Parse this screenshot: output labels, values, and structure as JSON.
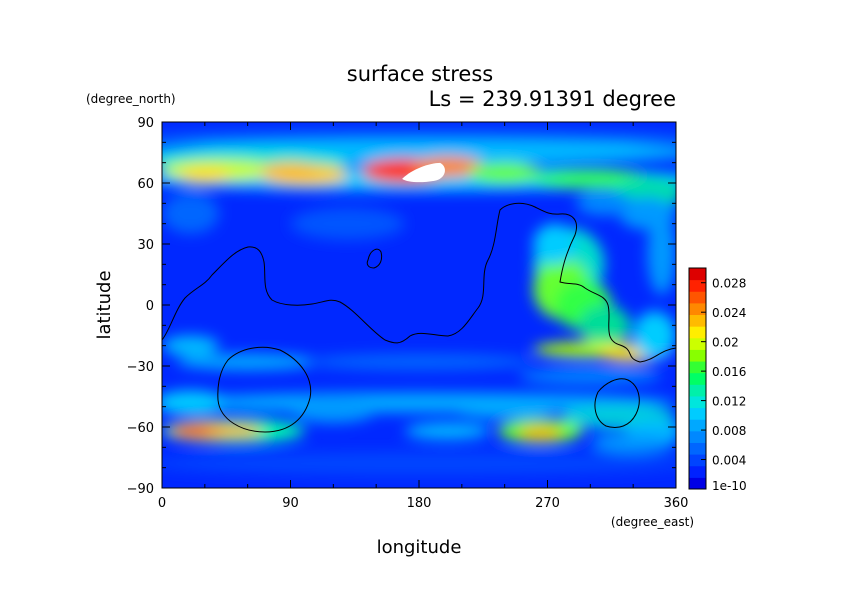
{
  "chart_data": {
    "type": "heatmap",
    "title": "surface stress",
    "subtitle": "Ls = 239.91391 degree",
    "xlabel": "longitude",
    "ylabel": "latitude",
    "x_unit": "(degree_east)",
    "y_unit": "(degree_north)",
    "xlim": [
      0,
      360
    ],
    "ylim": [
      -90,
      90
    ],
    "x_ticks": [
      "0",
      "90",
      "180",
      "270",
      "360"
    ],
    "y_ticks": [
      "90",
      "60",
      "30",
      "0",
      "−30",
      "−60",
      "−90"
    ],
    "colorbar": {
      "tick_labels": [
        "1e-10",
        "0.004",
        "0.008",
        "0.012",
        "0.016",
        "0.02",
        "0.024",
        "0.028"
      ],
      "levels": [
        0,
        0.004,
        0.008,
        0.012,
        0.016,
        0.02,
        0.024,
        0.028
      ],
      "colors": [
        "#0000e6",
        "#0022ff",
        "#0044ff",
        "#0066ff",
        "#0088ff",
        "#00a8ff",
        "#00ccff",
        "#00e6dd",
        "#00f0aa",
        "#00ff66",
        "#33ff33",
        "#88ff00",
        "#ccff00",
        "#ffee00",
        "#ffbb00",
        "#ff8800",
        "#ff5500",
        "#ff2200",
        "#dd0000"
      ],
      "max_shown": 0.03
    },
    "features": [
      {
        "lon": 185,
        "lat": 65,
        "value": 0.032,
        "note": "white (above max)"
      },
      {
        "lon": 160,
        "lat": 65,
        "value": 0.026
      },
      {
        "lon": 100,
        "lat": 64,
        "value": 0.02
      },
      {
        "lon": 40,
        "lat": 65,
        "value": 0.018
      },
      {
        "lon": 30,
        "lat": -62,
        "value": 0.026
      },
      {
        "lon": 265,
        "lat": -63,
        "value": 0.021
      },
      {
        "lon": 320,
        "lat": -24,
        "value": 0.02
      },
      {
        "lon": 285,
        "lat": 10,
        "value": 0.016
      }
    ],
    "grid": false
  }
}
